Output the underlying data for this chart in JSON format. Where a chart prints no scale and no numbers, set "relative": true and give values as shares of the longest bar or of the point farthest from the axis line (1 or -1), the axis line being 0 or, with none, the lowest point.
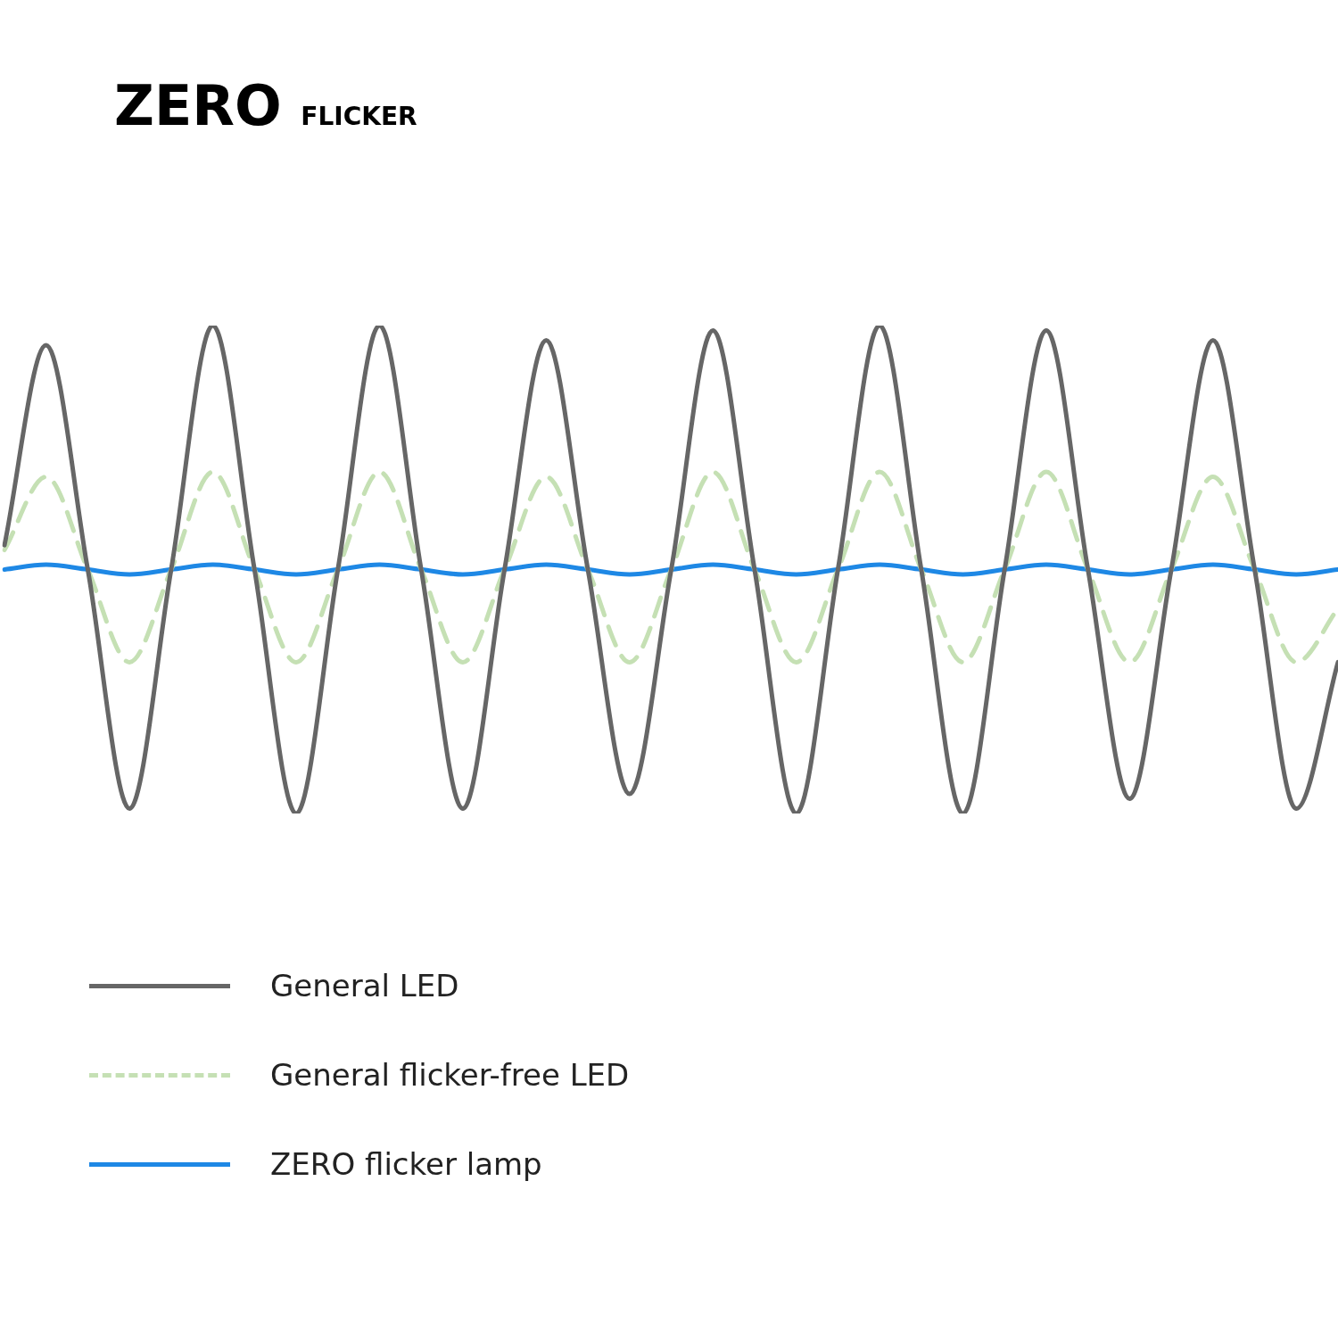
{
  "chart_data": {
    "type": "line",
    "title": "ZERO FLICKER",
    "relative": true,
    "legend": "bottom",
    "marker": "none",
    "categories": [
      null,
      null,
      null,
      null,
      null,
      null,
      null,
      null,
      null,
      null,
      null,
      null,
      null,
      null,
      null,
      null,
      null,
      null,
      null,
      null,
      null,
      null,
      null,
      null,
      null,
      null,
      null,
      null,
      null,
      null,
      null,
      null,
      null
    ],
    "series": [
      {
        "name": "General LED",
        "color": "#666666",
        "line_style": "solid",
        "values": [
          0.55,
          0.96,
          0.5,
          0.01,
          0.5,
          1,
          0.5,
          0,
          0.5,
          1,
          0.5,
          0.01,
          0.5,
          0.97,
          0.5,
          0.04,
          0.5,
          0.99,
          0.5,
          0,
          0.5,
          1,
          0.5,
          0,
          0.5,
          0.99,
          0.5,
          0.03,
          0.5,
          0.97,
          0.5,
          0.01,
          0.31
        ]
      },
      {
        "name": "General flicker-free LED",
        "color": "#c5e0b4",
        "line_style": "dashed",
        "values": [
          0.54,
          0.69,
          0.5,
          0.31,
          0.5,
          0.7,
          0.5,
          0.31,
          0.5,
          0.7,
          0.5,
          0.31,
          0.5,
          0.69,
          0.5,
          0.31,
          0.5,
          0.7,
          0.5,
          0.31,
          0.5,
          0.7,
          0.5,
          0.31,
          0.5,
          0.7,
          0.5,
          0.31,
          0.5,
          0.69,
          0.5,
          0.31,
          0.42
        ]
      },
      {
        "name": "ZERO flicker lamp",
        "color": "#1e88e5",
        "line_style": "solid",
        "values": [
          0.5,
          0.51,
          0.5,
          0.49,
          0.5,
          0.51,
          0.5,
          0.49,
          0.5,
          0.51,
          0.5,
          0.49,
          0.5,
          0.51,
          0.5,
          0.49,
          0.5,
          0.51,
          0.5,
          0.49,
          0.5,
          0.51,
          0.5,
          0.49,
          0.5,
          0.51,
          0.5,
          0.49,
          0.5,
          0.51,
          0.5,
          0.49,
          0.5
        ]
      }
    ]
  }
}
